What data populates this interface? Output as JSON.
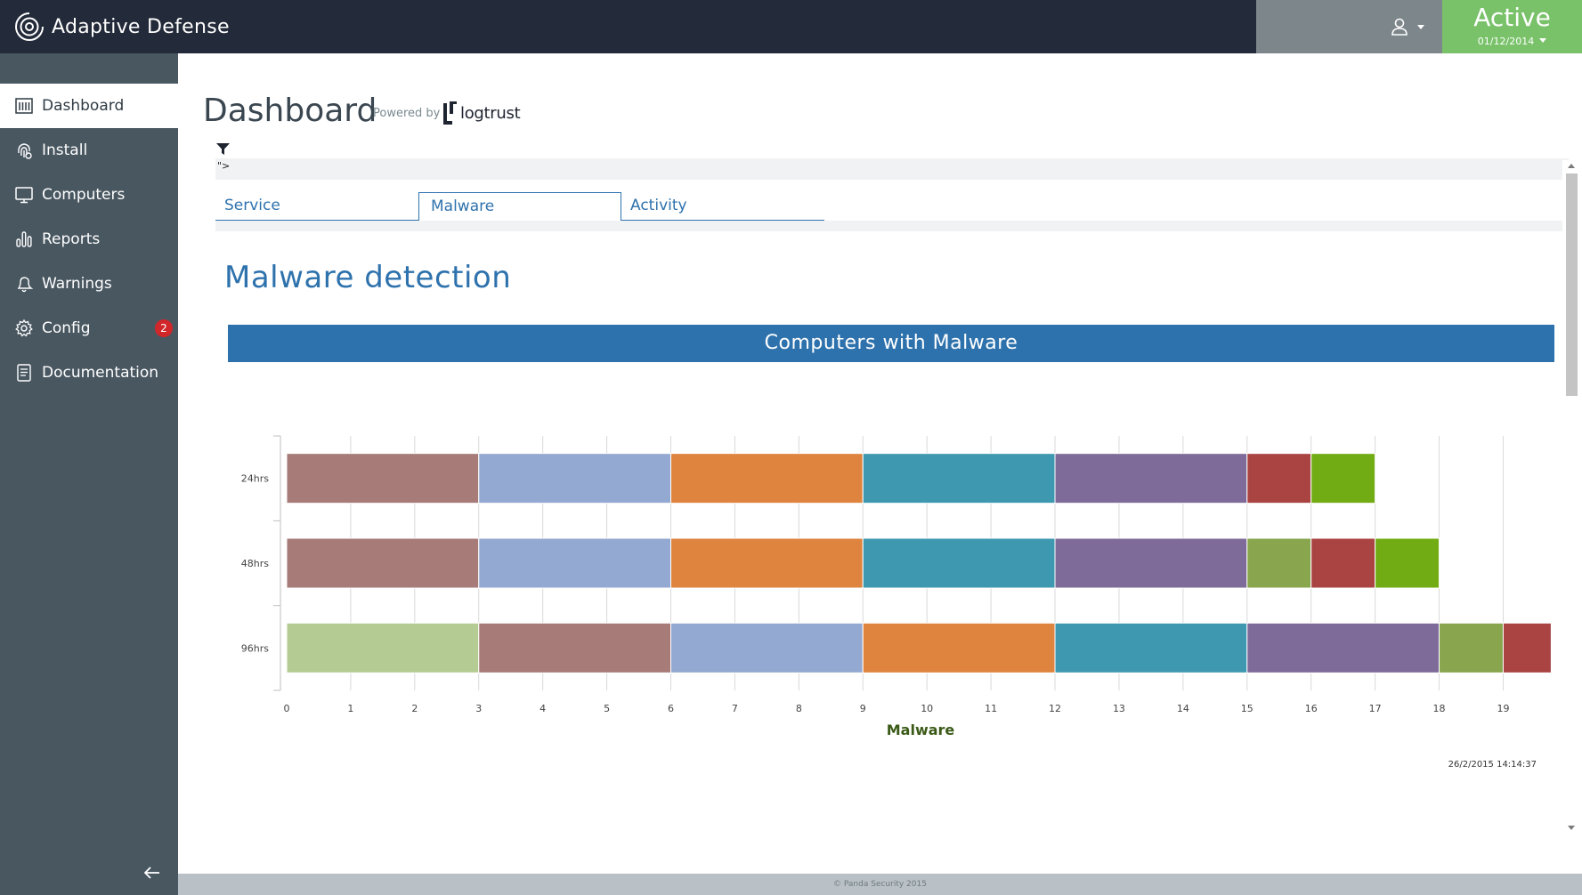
{
  "app": {
    "title": "Adaptive Defense",
    "status": "Active",
    "status_date": "01/12/2014",
    "colors": {
      "topbar": "#232a39",
      "sidebar": "#495761",
      "accent": "#2e72ad",
      "status": "#79c26a",
      "badge": "#d1262a"
    }
  },
  "sidebar": {
    "items": [
      {
        "label": "Dashboard",
        "icon": "dashboard-icon",
        "active": true
      },
      {
        "label": "Install",
        "icon": "fingerprint-icon"
      },
      {
        "label": "Computers",
        "icon": "monitor-icon"
      },
      {
        "label": "Reports",
        "icon": "bar-chart-icon"
      },
      {
        "label": "Warnings",
        "icon": "bell-icon"
      },
      {
        "label": "Config",
        "icon": "gear-icon",
        "badge": "2"
      },
      {
        "label": "Documentation",
        "icon": "document-icon"
      }
    ]
  },
  "header": {
    "title": "Dashboard",
    "powered_by": "Powered by",
    "powered_brand": "logtrust"
  },
  "filter": {
    "text": "\">"
  },
  "tabs": [
    {
      "label": "Service",
      "active": false
    },
    {
      "label": "Malware",
      "active": true
    },
    {
      "label": "Activity",
      "active": false
    }
  ],
  "section": {
    "title": "Malware detection",
    "chart_title": "Computers with Malware"
  },
  "chart_data": {
    "type": "bar",
    "orientation": "horizontal",
    "stacked": true,
    "title": "Computers with Malware",
    "xlabel": "Malware",
    "ylabel": "",
    "categories": [
      "24hrs",
      "48hrs",
      "96hrs"
    ],
    "xlim": [
      0,
      19.8
    ],
    "xticks": [
      0,
      1,
      2,
      3,
      4,
      5,
      6,
      7,
      8,
      9,
      10,
      11,
      12,
      13,
      14,
      15,
      16,
      17,
      18,
      19
    ],
    "grid": true,
    "legend": "none",
    "timestamp": "26/2/2015 14:14:37",
    "rows": [
      {
        "category": "24hrs",
        "segments": [
          {
            "value": 3,
            "color": "#a67b78"
          },
          {
            "value": 3,
            "color": "#94a9d1"
          },
          {
            "value": 3,
            "color": "#de843f"
          },
          {
            "value": 3,
            "color": "#3e98b0"
          },
          {
            "value": 3,
            "color": "#7f6b9a"
          },
          {
            "value": 1,
            "color": "#a94442"
          },
          {
            "value": 1,
            "color": "#72ac15"
          }
        ]
      },
      {
        "category": "48hrs",
        "segments": [
          {
            "value": 3,
            "color": "#a67b78"
          },
          {
            "value": 3,
            "color": "#94a9d1"
          },
          {
            "value": 3,
            "color": "#de843f"
          },
          {
            "value": 3,
            "color": "#3e98b0"
          },
          {
            "value": 3,
            "color": "#7f6b9a"
          },
          {
            "value": 1,
            "color": "#89a54e"
          },
          {
            "value": 1,
            "color": "#a94442"
          },
          {
            "value": 1,
            "color": "#72ac15"
          }
        ]
      },
      {
        "category": "96hrs",
        "segments": [
          {
            "value": 3,
            "color": "#b5cb94"
          },
          {
            "value": 3,
            "color": "#a67b78"
          },
          {
            "value": 3,
            "color": "#94a9d1"
          },
          {
            "value": 3,
            "color": "#de843f"
          },
          {
            "value": 3,
            "color": "#3e98b0"
          },
          {
            "value": 3,
            "color": "#7f6b9a"
          },
          {
            "value": 1,
            "color": "#89a54e"
          },
          {
            "value": 0.75,
            "color": "#a94442"
          }
        ]
      }
    ]
  },
  "footer": {
    "text": "© Panda Security 2015"
  }
}
